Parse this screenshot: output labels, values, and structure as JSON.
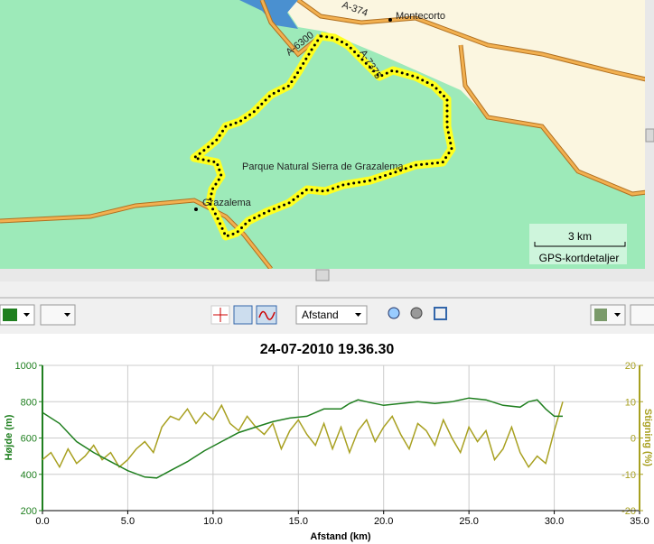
{
  "map": {
    "labels": [
      "A-374",
      "Montecorto",
      "A-6300",
      "A-7375",
      "Parque Natural Sierra de Grazalema",
      "Grazalema"
    ],
    "scale": "3 km",
    "detail": "GPS-kortdetaljer"
  },
  "toolbar": {
    "measure": "Afstand"
  },
  "chart_data": {
    "type": "line",
    "title": "24-07-2010 19.36.30",
    "x_label": "Afstand (km)",
    "y_label": "Højde (m)",
    "y2_label": "Stigning (%)",
    "xlim": [
      0,
      35
    ],
    "xticks": [
      {
        "value": 0,
        "label": "0.0"
      },
      {
        "value": 5,
        "label": "5.0"
      },
      {
        "value": 10,
        "label": "10.0"
      },
      {
        "value": 15,
        "label": "15.0"
      },
      {
        "value": 20,
        "label": "20.0"
      },
      {
        "value": 25,
        "label": "25.0"
      },
      {
        "value": 30,
        "label": "30.0"
      },
      {
        "value": 35,
        "label": "35.0"
      }
    ],
    "ylim": [
      200,
      1000
    ],
    "yticks": [
      200,
      400,
      600,
      800,
      1000
    ],
    "y2lim": [
      -20,
      20
    ],
    "y2ticks": [
      -20,
      -10,
      0,
      10,
      20
    ],
    "grid": true,
    "series": [
      {
        "color": "#1f7f1f",
        "x": [
          0,
          1,
          2,
          3,
          4,
          5,
          6,
          6.7,
          7.5,
          8.5,
          9.5,
          10.5,
          11.5,
          12.5,
          13.5,
          14.5,
          15.5,
          16.5,
          17.5,
          18,
          18.5,
          19,
          20,
          21,
          22,
          23,
          24,
          25,
          26,
          27,
          28,
          28.5,
          29,
          29.5,
          30,
          30.5
        ],
        "values": [
          740,
          680,
          580,
          520,
          470,
          420,
          385,
          380,
          420,
          470,
          530,
          580,
          630,
          660,
          690,
          710,
          720,
          760,
          760,
          790,
          810,
          800,
          780,
          790,
          800,
          790,
          800,
          820,
          810,
          780,
          770,
          800,
          810,
          760,
          720,
          720
        ]
      },
      {
        "color": "#a8a020",
        "axis": "y2",
        "x": [
          0,
          0.5,
          1,
          1.5,
          2,
          2.5,
          3,
          3.5,
          4,
          4.5,
          5,
          5.5,
          6,
          6.5,
          7,
          7.5,
          8,
          8.5,
          9,
          9.5,
          10,
          10.5,
          11,
          11.5,
          12,
          12.5,
          13,
          13.5,
          14,
          14.5,
          15,
          15.5,
          16,
          16.5,
          17,
          17.5,
          18,
          18.5,
          19,
          19.5,
          20,
          20.5,
          21,
          21.5,
          22,
          22.5,
          23,
          23.5,
          24,
          24.5,
          25,
          25.5,
          26,
          26.5,
          27,
          27.5,
          28,
          28.5,
          29,
          29.5,
          30,
          30.5
        ],
        "values": [
          -6,
          -4,
          -8,
          -3,
          -7,
          -5,
          -2,
          -6,
          -4,
          -8,
          -6,
          -3,
          -1,
          -4,
          3,
          6,
          5,
          8,
          4,
          7,
          5,
          9,
          4,
          2,
          6,
          3,
          1,
          4,
          -3,
          2,
          5,
          1,
          -2,
          4,
          -3,
          3,
          -4,
          2,
          5,
          -1,
          3,
          6,
          1,
          -3,
          4,
          2,
          -2,
          5,
          0,
          -4,
          3,
          -1,
          2,
          -6,
          -3,
          3,
          -4,
          -8,
          -5,
          -7,
          2,
          10
        ]
      }
    ]
  }
}
